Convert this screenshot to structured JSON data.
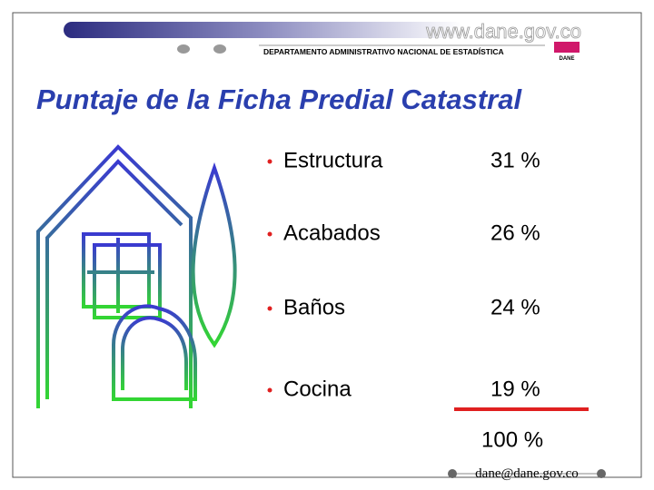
{
  "header": {
    "url": "www.dane.gov.co",
    "department": "DEPARTAMENTO ADMINISTRATIVO NACIONAL DE ESTADÍSTICA",
    "logo": "DANE"
  },
  "title": "Puntaje de la Ficha Predial Catastral",
  "items": [
    {
      "label": "Estructura",
      "value": "31 %"
    },
    {
      "label": "Acabados",
      "value": "26 %"
    },
    {
      "label": "Baños",
      "value": "24 %"
    },
    {
      "label": "Cocina",
      "value": "19 %"
    }
  ],
  "total": "100 %",
  "footer": "dane@dane.gov.co"
}
